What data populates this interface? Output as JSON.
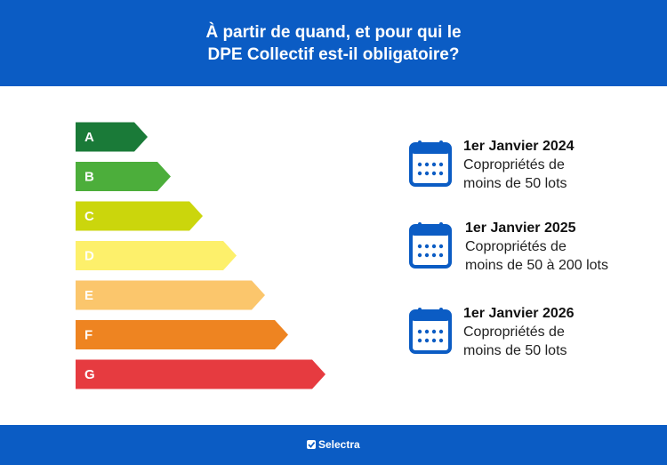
{
  "header": {
    "title_lines": [
      "À partir de quand, et pour qui le",
      "DPE Collectif est-il obligatoire?"
    ]
  },
  "energy_classes": [
    "A",
    "B",
    "C",
    "D",
    "E",
    "F",
    "G"
  ],
  "deadlines": [
    {
      "date": "1er Janvier 2024",
      "lines": [
        "Copropriétés de",
        "moins de 50 lots"
      ]
    },
    {
      "date": "1er Janvier 2025",
      "lines": [
        "Copropriétés de",
        "moins de 50 à 200 lots"
      ]
    },
    {
      "date": "1er Janvier 2026",
      "lines": [
        "Copropriétés de",
        "moins de 50 lots"
      ]
    }
  ],
  "footer": {
    "brand": "Selectra"
  }
}
